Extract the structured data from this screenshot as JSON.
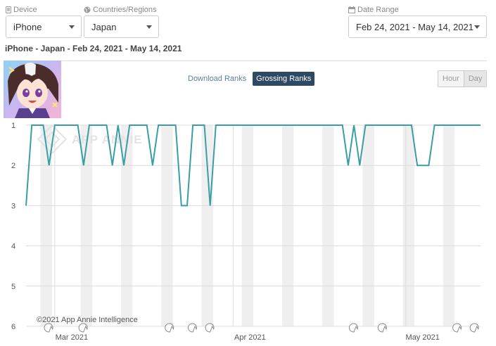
{
  "filters": {
    "device": {
      "label": "Device",
      "value": "iPhone"
    },
    "country": {
      "label": "Countries/Regions",
      "value": "Japan"
    },
    "date_range": {
      "label": "Date Range",
      "value": "Feb 24, 2021 - May 14, 2021"
    }
  },
  "subtitle": "iPhone - Japan - Feb 24, 2021 - May 14, 2021",
  "rank_tabs": [
    {
      "label": "Download Ranks",
      "active": false
    },
    {
      "label": "Grossing Ranks",
      "active": true
    }
  ],
  "granularity": [
    {
      "label": "Hour",
      "active": false
    },
    {
      "label": "Day",
      "active": true
    }
  ],
  "watermark": "APP ANNIE",
  "copyright": "©2021 App Annie Intelligence",
  "colors": {
    "line": "#3a9ea5",
    "weekend_band": "#efefef",
    "active_tab": "#2e4a63"
  },
  "chart_data": {
    "type": "line",
    "x_start": "Feb 24, 2021",
    "x_end": "May 14, 2021",
    "y_reversed": true,
    "ylim": [
      1,
      6
    ],
    "yticks": [
      "1",
      "2",
      "3",
      "4",
      "5",
      "6"
    ],
    "xticks": [
      {
        "date": "2021-03-01",
        "label": "Mar 2021"
      },
      {
        "date": "2021-04-01",
        "label": "Apr 2021"
      },
      {
        "date": "2021-05-01",
        "label": "May 2021"
      }
    ],
    "series": [
      {
        "values": [
          3,
          1,
          1,
          1,
          2,
          1,
          1,
          1,
          1,
          1,
          2,
          1,
          1,
          1,
          1,
          2,
          1,
          2,
          1,
          1,
          1,
          1,
          2,
          1,
          1,
          1,
          1,
          3,
          3,
          1,
          1,
          1,
          3,
          1,
          1,
          1,
          1,
          1,
          1,
          1,
          1,
          1,
          1,
          1,
          1,
          1,
          1,
          1,
          1,
          1,
          1,
          1,
          1,
          1,
          1,
          1,
          2,
          1,
          2,
          1,
          1,
          1,
          1,
          1,
          1,
          1,
          1,
          1,
          2,
          2,
          2,
          1,
          1,
          1,
          1,
          1,
          1,
          1,
          1,
          1
        ]
      }
    ],
    "event_markers": [
      "2021-02-29",
      "2021-03-06",
      "2021-03-21",
      "2021-03-25",
      "2021-03-28",
      "2021-04-22",
      "2021-04-27",
      "2021-05-10",
      "2021-05-13"
    ]
  }
}
